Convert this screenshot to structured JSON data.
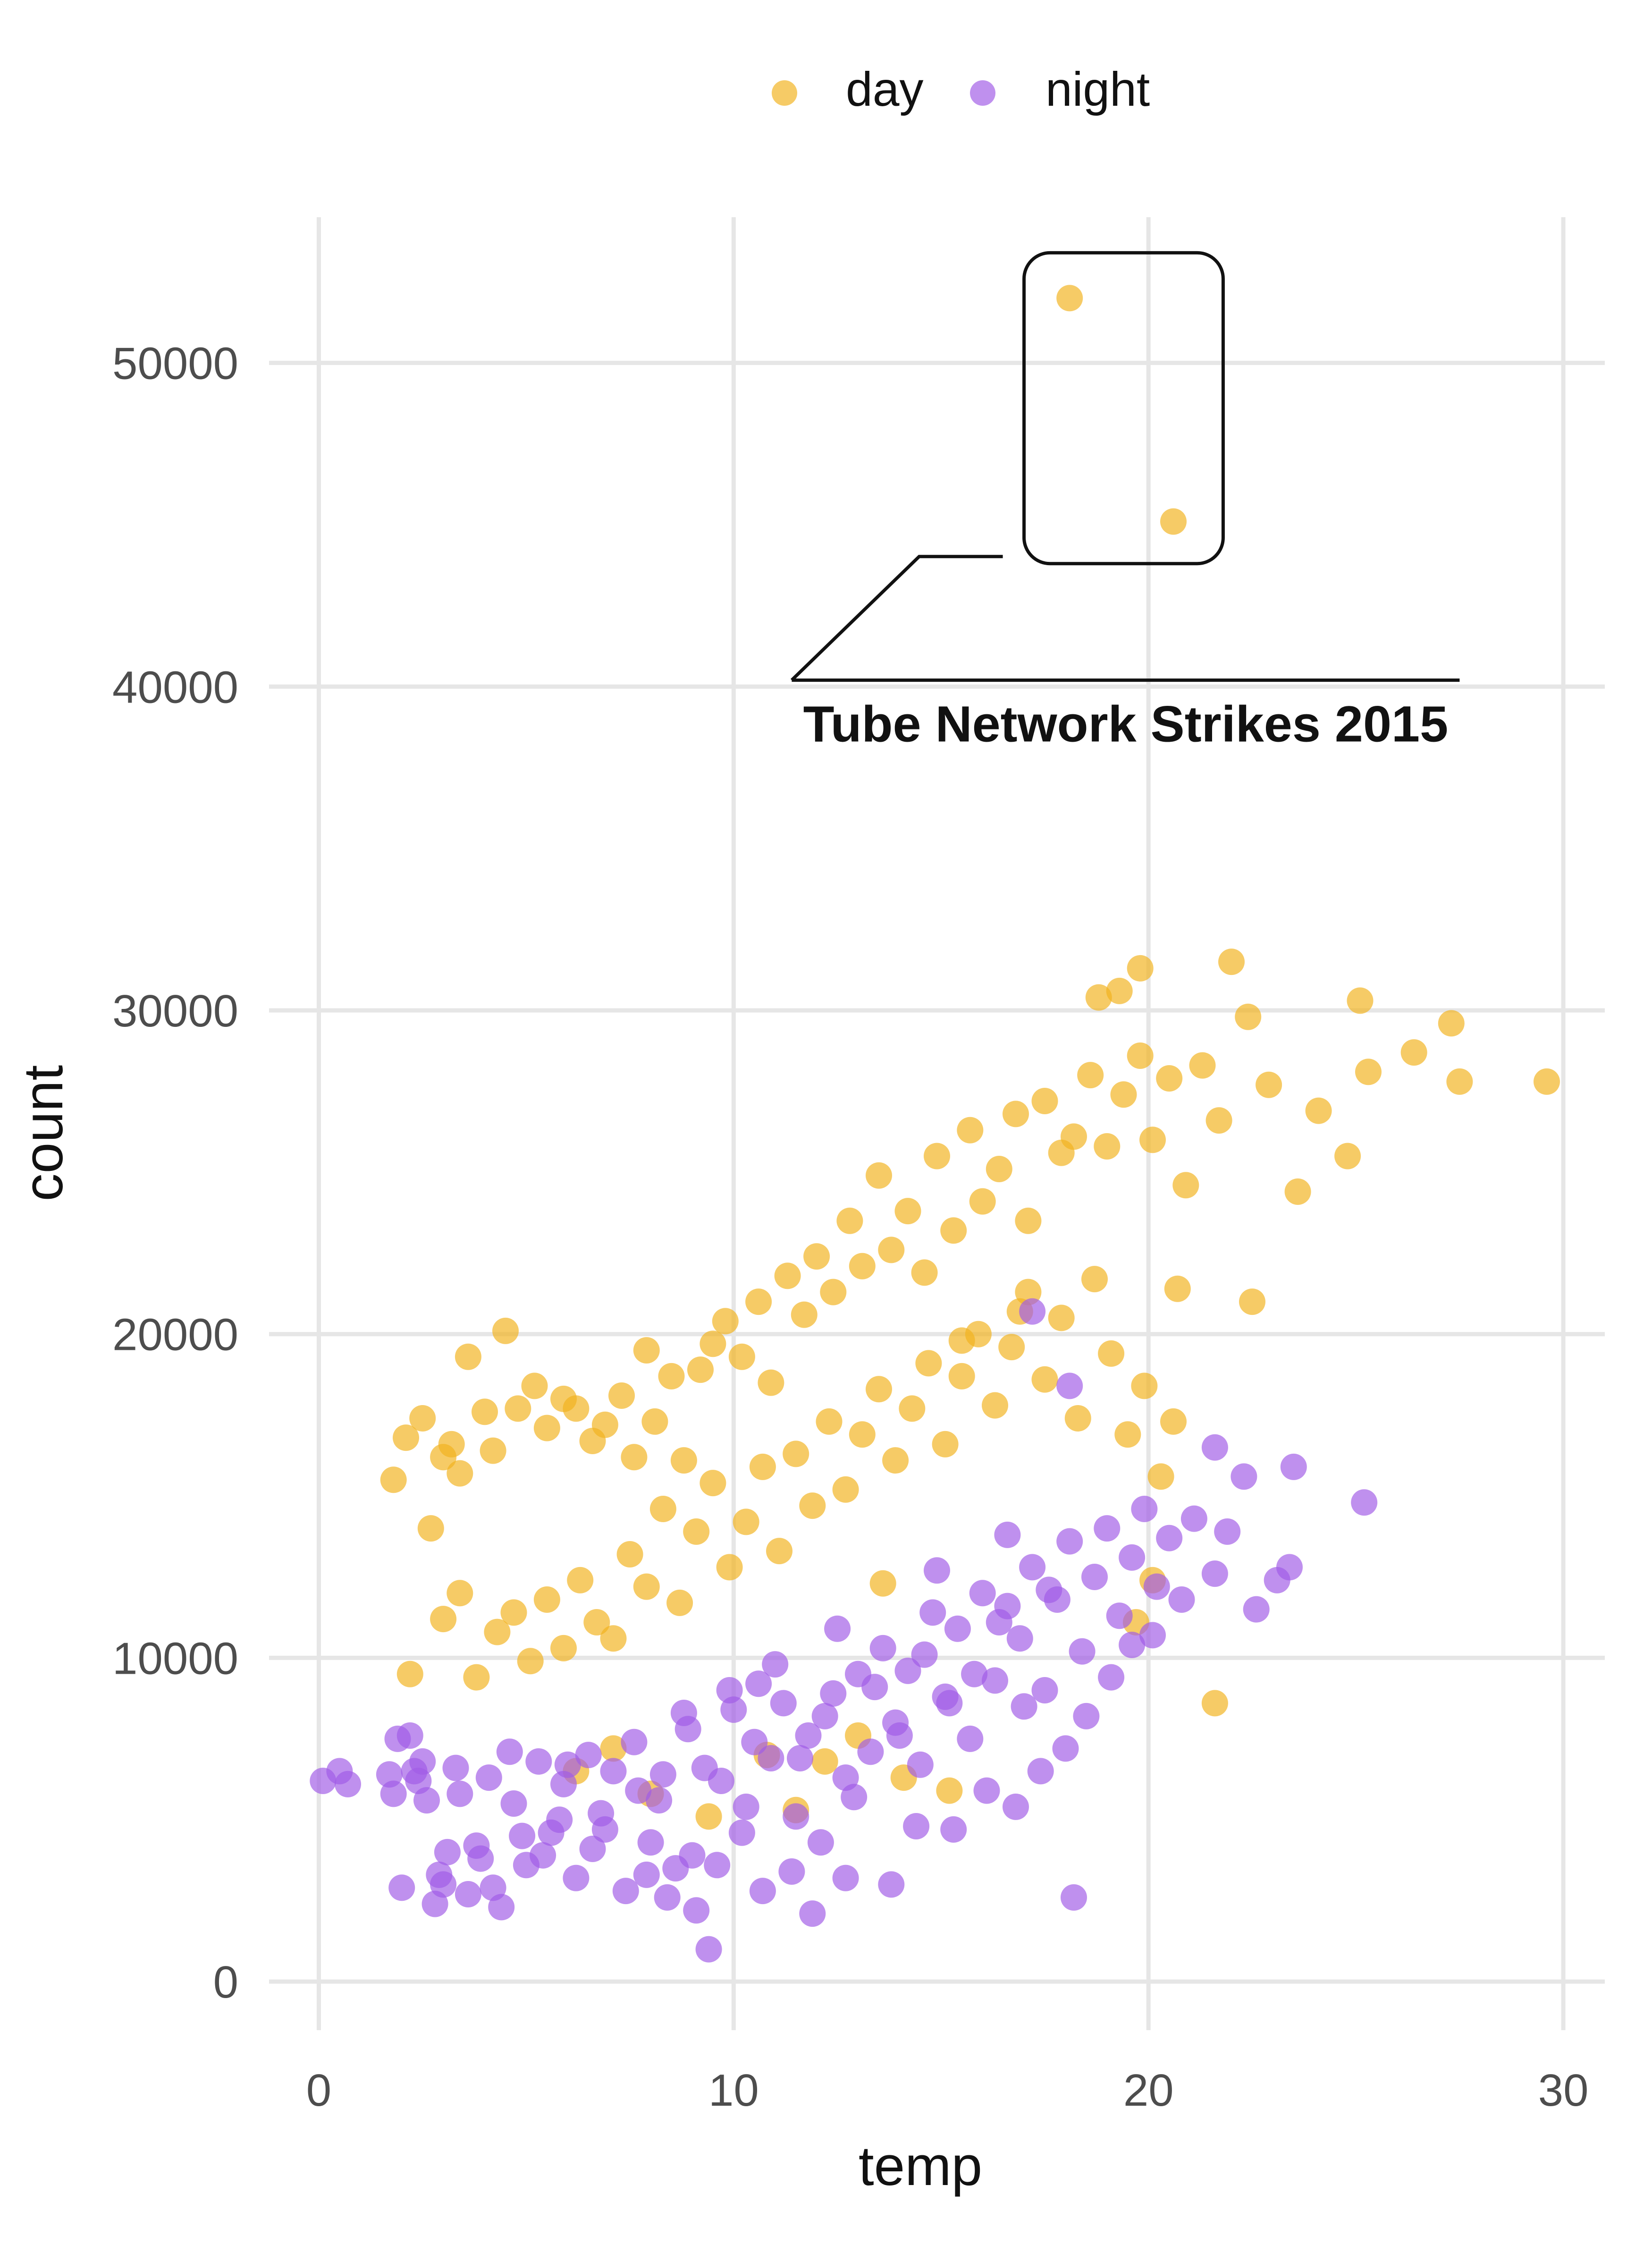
{
  "chart_data": {
    "type": "scatter",
    "xlabel": "temp",
    "ylabel": "count",
    "xlim": [
      -1.2,
      31.0
    ],
    "ylim": [
      -1500,
      54500
    ],
    "x_ticks": [
      0,
      10,
      20,
      30
    ],
    "y_ticks": [
      0,
      10000,
      20000,
      30000,
      40000,
      50000
    ],
    "x_tick_labels": [
      "0",
      "10",
      "20",
      "30"
    ],
    "y_tick_labels": [
      "0",
      "10000",
      "20000",
      "30000",
      "40000",
      "50000"
    ],
    "grid": true,
    "legend_position": "top",
    "annotation": {
      "text": "Tube Network Strikes 2015",
      "highlight_box_x": [
        17.0,
        21.8
      ],
      "highlight_box_y": [
        43800,
        53400
      ],
      "label_anchor_x": 11.4,
      "label_anchor_y": 40200
    },
    "series": [
      {
        "name": "day",
        "color": "#F2B21D",
        "points": [
          [
            18.1,
            52000
          ],
          [
            20.6,
            45100
          ],
          [
            1.8,
            15500
          ],
          [
            2.1,
            16800
          ],
          [
            2.5,
            17400
          ],
          [
            2.7,
            14000
          ],
          [
            3.0,
            16200
          ],
          [
            3.2,
            16600
          ],
          [
            3.4,
            15700
          ],
          [
            3.6,
            19300
          ],
          [
            4.0,
            17600
          ],
          [
            4.2,
            16400
          ],
          [
            4.5,
            20100
          ],
          [
            4.8,
            17700
          ],
          [
            5.2,
            18400
          ],
          [
            5.5,
            17100
          ],
          [
            5.9,
            18000
          ],
          [
            6.2,
            17700
          ],
          [
            6.6,
            16700
          ],
          [
            6.9,
            17200
          ],
          [
            7.3,
            18100
          ],
          [
            7.6,
            16200
          ],
          [
            7.9,
            19500
          ],
          [
            8.1,
            17300
          ],
          [
            8.5,
            18700
          ],
          [
            8.8,
            16100
          ],
          [
            9.2,
            18900
          ],
          [
            9.5,
            19700
          ],
          [
            9.8,
            20400
          ],
          [
            10.2,
            19300
          ],
          [
            10.6,
            21000
          ],
          [
            10.9,
            18500
          ],
          [
            11.3,
            21800
          ],
          [
            11.7,
            20600
          ],
          [
            12.0,
            22400
          ],
          [
            12.4,
            21300
          ],
          [
            12.8,
            23500
          ],
          [
            13.1,
            22100
          ],
          [
            13.5,
            24900
          ],
          [
            13.8,
            22600
          ],
          [
            14.2,
            23800
          ],
          [
            14.6,
            21900
          ],
          [
            14.9,
            25500
          ],
          [
            15.3,
            23200
          ],
          [
            15.7,
            26300
          ],
          [
            16.0,
            24100
          ],
          [
            16.4,
            25100
          ],
          [
            16.8,
            26800
          ],
          [
            17.1,
            23500
          ],
          [
            17.5,
            27200
          ],
          [
            17.9,
            25600
          ],
          [
            18.2,
            26100
          ],
          [
            18.6,
            28000
          ],
          [
            19.0,
            25800
          ],
          [
            19.4,
            27400
          ],
          [
            19.8,
            28600
          ],
          [
            20.1,
            26000
          ],
          [
            20.5,
            27900
          ],
          [
            20.9,
            24600
          ],
          [
            21.3,
            28300
          ],
          [
            21.7,
            26600
          ],
          [
            22.0,
            31500
          ],
          [
            22.4,
            29800
          ],
          [
            22.9,
            27700
          ],
          [
            23.6,
            24400
          ],
          [
            24.1,
            26900
          ],
          [
            24.8,
            25500
          ],
          [
            25.1,
            30300
          ],
          [
            25.3,
            28100
          ],
          [
            26.4,
            28700
          ],
          [
            27.3,
            29600
          ],
          [
            27.5,
            27800
          ],
          [
            29.6,
            27800
          ],
          [
            19.8,
            31300
          ],
          [
            19.3,
            30600
          ],
          [
            18.8,
            30400
          ],
          [
            22.5,
            21000
          ],
          [
            20.7,
            21400
          ],
          [
            16.9,
            20700
          ],
          [
            15.5,
            19800
          ],
          [
            2.2,
            9500
          ],
          [
            3.0,
            11200
          ],
          [
            3.4,
            12000
          ],
          [
            3.8,
            9400
          ],
          [
            4.3,
            10800
          ],
          [
            4.7,
            11400
          ],
          [
            5.1,
            9900
          ],
          [
            5.5,
            11800
          ],
          [
            5.9,
            10300
          ],
          [
            6.3,
            12400
          ],
          [
            6.7,
            11100
          ],
          [
            7.1,
            10600
          ],
          [
            7.5,
            13200
          ],
          [
            7.9,
            12200
          ],
          [
            8.3,
            14600
          ],
          [
            8.7,
            11700
          ],
          [
            9.1,
            13900
          ],
          [
            9.5,
            15400
          ],
          [
            9.9,
            12800
          ],
          [
            10.3,
            14200
          ],
          [
            10.7,
            15900
          ],
          [
            11.1,
            13300
          ],
          [
            11.5,
            16300
          ],
          [
            11.9,
            14700
          ],
          [
            12.3,
            17300
          ],
          [
            12.7,
            15200
          ],
          [
            13.1,
            16900
          ],
          [
            13.5,
            18300
          ],
          [
            13.9,
            16100
          ],
          [
            14.3,
            17700
          ],
          [
            14.7,
            19100
          ],
          [
            15.1,
            16600
          ],
          [
            15.5,
            18700
          ],
          [
            15.9,
            20000
          ],
          [
            16.3,
            17800
          ],
          [
            16.7,
            19600
          ],
          [
            17.1,
            21300
          ],
          [
            17.5,
            18600
          ],
          [
            17.9,
            20500
          ],
          [
            18.3,
            17400
          ],
          [
            18.7,
            21700
          ],
          [
            19.1,
            19400
          ],
          [
            19.5,
            16900
          ],
          [
            19.9,
            18400
          ],
          [
            20.3,
            15600
          ],
          [
            20.6,
            17300
          ],
          [
            20.1,
            12400
          ],
          [
            19.7,
            11100
          ],
          [
            21.6,
            8600
          ],
          [
            6.2,
            6500
          ],
          [
            7.1,
            7200
          ],
          [
            8.0,
            5800
          ],
          [
            9.4,
            5100
          ],
          [
            10.8,
            7000
          ],
          [
            11.5,
            5300
          ],
          [
            12.2,
            6800
          ],
          [
            13.0,
            7600
          ],
          [
            14.1,
            6300
          ],
          [
            15.2,
            5900
          ],
          [
            13.6,
            12300
          ]
        ]
      },
      {
        "name": "night",
        "color": "#A05BE6",
        "points": [
          [
            0.1,
            6200
          ],
          [
            0.5,
            6500
          ],
          [
            0.7,
            6100
          ],
          [
            1.7,
            6400
          ],
          [
            1.8,
            5800
          ],
          [
            1.9,
            7500
          ],
          [
            2.0,
            2900
          ],
          [
            2.2,
            7600
          ],
          [
            2.4,
            6200
          ],
          [
            2.6,
            5600
          ],
          [
            2.8,
            2400
          ],
          [
            2.9,
            3300
          ],
          [
            3.1,
            4000
          ],
          [
            3.3,
            6600
          ],
          [
            3.6,
            2700
          ],
          [
            3.9,
            3800
          ],
          [
            4.1,
            6300
          ],
          [
            4.4,
            2300
          ],
          [
            4.7,
            5500
          ],
          [
            5.0,
            3600
          ],
          [
            5.3,
            6800
          ],
          [
            5.6,
            4600
          ],
          [
            5.9,
            6100
          ],
          [
            6.2,
            3200
          ],
          [
            6.5,
            7000
          ],
          [
            6.8,
            5200
          ],
          [
            7.1,
            6500
          ],
          [
            7.4,
            2800
          ],
          [
            7.7,
            5900
          ],
          [
            8.0,
            4300
          ],
          [
            8.3,
            6400
          ],
          [
            8.6,
            3500
          ],
          [
            8.9,
            7800
          ],
          [
            9.1,
            2200
          ],
          [
            9.4,
            1000
          ],
          [
            9.7,
            6200
          ],
          [
            10.0,
            8400
          ],
          [
            10.3,
            5400
          ],
          [
            10.6,
            9200
          ],
          [
            10.9,
            6900
          ],
          [
            11.2,
            8600
          ],
          [
            11.5,
            5100
          ],
          [
            11.8,
            7600
          ],
          [
            12.1,
            4300
          ],
          [
            12.4,
            8900
          ],
          [
            12.7,
            6300
          ],
          [
            13.0,
            9500
          ],
          [
            13.3,
            7100
          ],
          [
            13.6,
            10300
          ],
          [
            13.9,
            8000
          ],
          [
            14.2,
            9600
          ],
          [
            14.5,
            6700
          ],
          [
            14.8,
            11400
          ],
          [
            15.1,
            8800
          ],
          [
            15.4,
            10900
          ],
          [
            15.7,
            7500
          ],
          [
            16.0,
            12000
          ],
          [
            16.3,
            9300
          ],
          [
            16.6,
            11600
          ],
          [
            16.9,
            10600
          ],
          [
            17.2,
            12800
          ],
          [
            17.5,
            9000
          ],
          [
            17.8,
            11800
          ],
          [
            18.1,
            13600
          ],
          [
            18.4,
            10200
          ],
          [
            18.7,
            12500
          ],
          [
            19.0,
            14000
          ],
          [
            19.3,
            11300
          ],
          [
            19.6,
            13100
          ],
          [
            19.9,
            14600
          ],
          [
            20.2,
            12200
          ],
          [
            20.5,
            13700
          ],
          [
            20.8,
            11800
          ],
          [
            21.1,
            14300
          ],
          [
            21.6,
            12600
          ],
          [
            21.9,
            13900
          ],
          [
            22.3,
            15600
          ],
          [
            22.6,
            11500
          ],
          [
            23.1,
            12400
          ],
          [
            23.4,
            12800
          ],
          [
            23.5,
            15900
          ],
          [
            25.2,
            14800
          ],
          [
            21.6,
            16500
          ],
          [
            18.2,
            2600
          ],
          [
            17.2,
            20700
          ],
          [
            18.1,
            18400
          ],
          [
            11.9,
            2100
          ],
          [
            12.7,
            3200
          ],
          [
            13.8,
            3000
          ],
          [
            14.4,
            4800
          ],
          [
            15.3,
            4700
          ],
          [
            16.1,
            5900
          ],
          [
            16.8,
            5400
          ],
          [
            17.4,
            6500
          ],
          [
            18.0,
            7200
          ],
          [
            18.5,
            8200
          ],
          [
            19.1,
            9400
          ],
          [
            19.6,
            10400
          ],
          [
            2.5,
            6800
          ],
          [
            3.8,
            4200
          ],
          [
            4.6,
            7100
          ],
          [
            5.4,
            3900
          ],
          [
            6.0,
            6700
          ],
          [
            6.9,
            4700
          ],
          [
            7.6,
            7400
          ],
          [
            8.2,
            5600
          ],
          [
            8.8,
            8300
          ],
          [
            9.3,
            6600
          ],
          [
            9.9,
            9000
          ],
          [
            10.5,
            7400
          ],
          [
            11.0,
            9800
          ],
          [
            11.6,
            6900
          ],
          [
            12.2,
            8200
          ],
          [
            12.9,
            5700
          ],
          [
            13.4,
            9100
          ],
          [
            14.0,
            7600
          ],
          [
            14.6,
            10100
          ],
          [
            15.2,
            8600
          ],
          [
            15.8,
            9500
          ],
          [
            16.4,
            11100
          ],
          [
            17.0,
            8500
          ],
          [
            17.6,
            12100
          ],
          [
            9.0,
            3900
          ],
          [
            10.2,
            4600
          ],
          [
            8.4,
            2600
          ],
          [
            7.9,
            3300
          ],
          [
            6.6,
            4100
          ],
          [
            5.8,
            5000
          ],
          [
            4.9,
            4500
          ],
          [
            3.4,
            5800
          ],
          [
            2.3,
            6500
          ],
          [
            3.0,
            3000
          ],
          [
            4.2,
            2900
          ],
          [
            11.4,
            3400
          ],
          [
            10.7,
            2800
          ],
          [
            9.6,
            3600
          ],
          [
            12.5,
            10900
          ],
          [
            14.9,
            12700
          ],
          [
            16.6,
            13800
          ],
          [
            20.1,
            10700
          ]
        ]
      }
    ]
  }
}
